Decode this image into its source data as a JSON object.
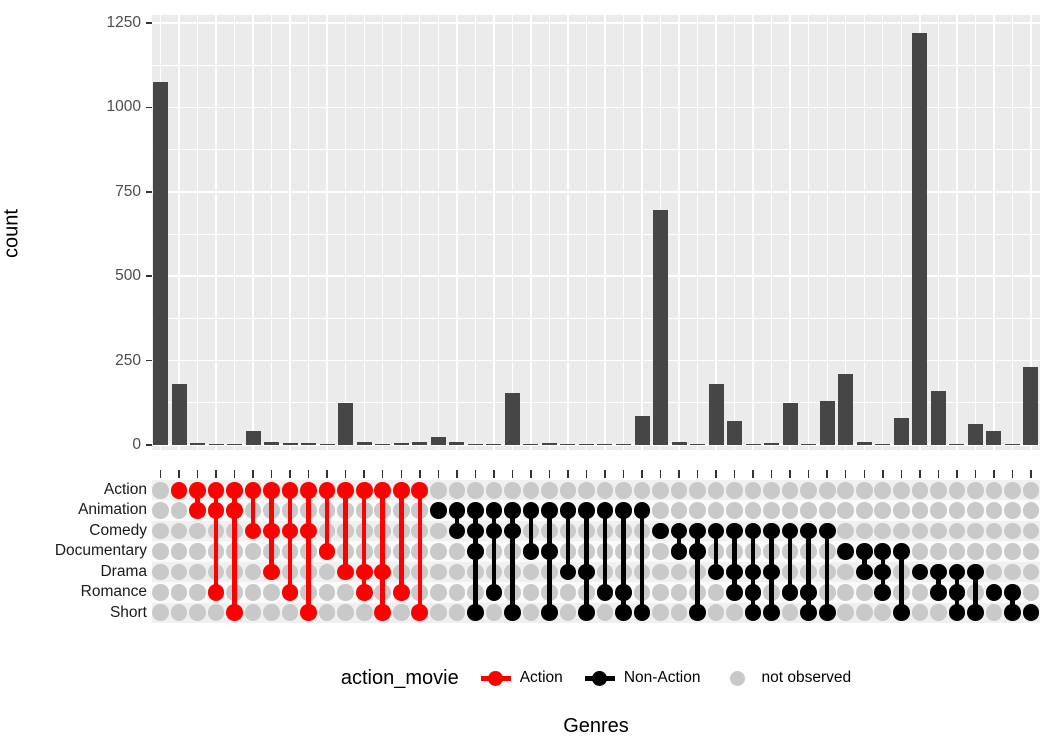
{
  "y_axis": {
    "title": "count",
    "tick_labels": [
      "0",
      "250",
      "500",
      "750",
      "1000",
      "1250"
    ],
    "tick_values": [
      0,
      250,
      500,
      750,
      1000,
      1250
    ],
    "minor_tick_values": [
      125,
      375,
      625,
      875,
      1125
    ]
  },
  "x_axis": {
    "title": "Genres"
  },
  "legend": {
    "title": "action_movie",
    "items": [
      {
        "label": "Action",
        "color": "#FF0000",
        "glyph": "line-dot"
      },
      {
        "label": "Non-Action",
        "color": "#000000",
        "glyph": "line-dot"
      },
      {
        "label": "not observed",
        "color": "#C9C9C9",
        "glyph": "dot"
      }
    ]
  },
  "matrix_rows": [
    "Action",
    "Animation",
    "Comedy",
    "Documentary",
    "Drama",
    "Romance",
    "Short"
  ],
  "colors": {
    "bar": "#464646",
    "panel_bg": "#EBEBEB",
    "grid": "#FFFFFF",
    "action": "#FF0000",
    "non_action": "#000000",
    "not_observed": "#C9C9C9",
    "stripe_odd": "#F0F0F0",
    "stripe_even": "#FAFAFA",
    "tick_label": "#4D4D4D",
    "axis_tick": "#333333"
  },
  "chart_data": {
    "type": "bar",
    "variant": "upset",
    "ylabel": "count",
    "xlabel": "Genres",
    "ylim": [
      0,
      1250
    ],
    "grid": true,
    "legend_position": "bottom",
    "group_colors": {
      "Action": "#FF0000",
      "Non-Action": "#000000",
      "none": null
    },
    "combinations": [
      {
        "sets": [],
        "count": 1075,
        "group": "none"
      },
      {
        "sets": [
          "Action"
        ],
        "count": 180,
        "group": "Action"
      },
      {
        "sets": [
          "Action",
          "Animation"
        ],
        "count": 5,
        "group": "Action"
      },
      {
        "sets": [
          "Action",
          "Animation",
          "Romance"
        ],
        "count": 1,
        "group": "Action"
      },
      {
        "sets": [
          "Action",
          "Animation",
          "Short"
        ],
        "count": 1,
        "group": "Action"
      },
      {
        "sets": [
          "Action",
          "Comedy"
        ],
        "count": 40,
        "group": "Action"
      },
      {
        "sets": [
          "Action",
          "Comedy",
          "Drama"
        ],
        "count": 10,
        "group": "Action"
      },
      {
        "sets": [
          "Action",
          "Comedy",
          "Romance"
        ],
        "count": 5,
        "group": "Action"
      },
      {
        "sets": [
          "Action",
          "Comedy",
          "Short"
        ],
        "count": 7,
        "group": "Action"
      },
      {
        "sets": [
          "Action",
          "Documentary"
        ],
        "count": 2,
        "group": "Action"
      },
      {
        "sets": [
          "Action",
          "Drama"
        ],
        "count": 125,
        "group": "Action"
      },
      {
        "sets": [
          "Action",
          "Drama",
          "Romance"
        ],
        "count": 10,
        "group": "Action"
      },
      {
        "sets": [
          "Action",
          "Drama",
          "Short"
        ],
        "count": 1,
        "group": "Action"
      },
      {
        "sets": [
          "Action",
          "Romance"
        ],
        "count": 7,
        "group": "Action"
      },
      {
        "sets": [
          "Action",
          "Short"
        ],
        "count": 8,
        "group": "Action"
      },
      {
        "sets": [
          "Animation"
        ],
        "count": 25,
        "group": "Non-Action"
      },
      {
        "sets": [
          "Animation",
          "Comedy"
        ],
        "count": 8,
        "group": "Non-Action"
      },
      {
        "sets": [
          "Animation",
          "Comedy",
          "Documentary",
          "Short"
        ],
        "count": 2,
        "group": "Non-Action"
      },
      {
        "sets": [
          "Animation",
          "Comedy",
          "Romance"
        ],
        "count": 1,
        "group": "Non-Action"
      },
      {
        "sets": [
          "Animation",
          "Comedy",
          "Short"
        ],
        "count": 155,
        "group": "Non-Action"
      },
      {
        "sets": [
          "Animation",
          "Documentary"
        ],
        "count": 1,
        "group": "Non-Action"
      },
      {
        "sets": [
          "Animation",
          "Documentary",
          "Short"
        ],
        "count": 5,
        "group": "Non-Action"
      },
      {
        "sets": [
          "Animation",
          "Drama"
        ],
        "count": 1,
        "group": "Non-Action"
      },
      {
        "sets": [
          "Animation",
          "Drama",
          "Short"
        ],
        "count": 1,
        "group": "Non-Action"
      },
      {
        "sets": [
          "Animation",
          "Romance"
        ],
        "count": 1,
        "group": "Non-Action"
      },
      {
        "sets": [
          "Animation",
          "Romance",
          "Short"
        ],
        "count": 2,
        "group": "Non-Action"
      },
      {
        "sets": [
          "Animation",
          "Short"
        ],
        "count": 85,
        "group": "Non-Action"
      },
      {
        "sets": [
          "Comedy"
        ],
        "count": 695,
        "group": "Non-Action"
      },
      {
        "sets": [
          "Comedy",
          "Documentary"
        ],
        "count": 10,
        "group": "Non-Action"
      },
      {
        "sets": [
          "Comedy",
          "Documentary",
          "Short"
        ],
        "count": 1,
        "group": "Non-Action"
      },
      {
        "sets": [
          "Comedy",
          "Drama"
        ],
        "count": 180,
        "group": "Non-Action"
      },
      {
        "sets": [
          "Comedy",
          "Drama",
          "Romance"
        ],
        "count": 70,
        "group": "Non-Action"
      },
      {
        "sets": [
          "Comedy",
          "Drama",
          "Romance",
          "Short"
        ],
        "count": 1,
        "group": "Non-Action"
      },
      {
        "sets": [
          "Comedy",
          "Drama",
          "Short"
        ],
        "count": 5,
        "group": "Non-Action"
      },
      {
        "sets": [
          "Comedy",
          "Romance"
        ],
        "count": 125,
        "group": "Non-Action"
      },
      {
        "sets": [
          "Comedy",
          "Romance",
          "Short"
        ],
        "count": 3,
        "group": "Non-Action"
      },
      {
        "sets": [
          "Comedy",
          "Short"
        ],
        "count": 130,
        "group": "Non-Action"
      },
      {
        "sets": [
          "Documentary"
        ],
        "count": 210,
        "group": "Non-Action"
      },
      {
        "sets": [
          "Documentary",
          "Drama"
        ],
        "count": 10,
        "group": "Non-Action"
      },
      {
        "sets": [
          "Documentary",
          "Drama",
          "Romance"
        ],
        "count": 1,
        "group": "Non-Action"
      },
      {
        "sets": [
          "Documentary",
          "Short"
        ],
        "count": 80,
        "group": "Non-Action"
      },
      {
        "sets": [
          "Drama"
        ],
        "count": 1220,
        "group": "Non-Action"
      },
      {
        "sets": [
          "Drama",
          "Romance"
        ],
        "count": 160,
        "group": "Non-Action"
      },
      {
        "sets": [
          "Drama",
          "Romance",
          "Short"
        ],
        "count": 1,
        "group": "Non-Action"
      },
      {
        "sets": [
          "Drama",
          "Short"
        ],
        "count": 62,
        "group": "Non-Action"
      },
      {
        "sets": [
          "Romance"
        ],
        "count": 40,
        "group": "Non-Action"
      },
      {
        "sets": [
          "Romance",
          "Short"
        ],
        "count": 2,
        "group": "Non-Action"
      },
      {
        "sets": [
          "Short"
        ],
        "count": 230,
        "group": "Non-Action"
      }
    ]
  }
}
